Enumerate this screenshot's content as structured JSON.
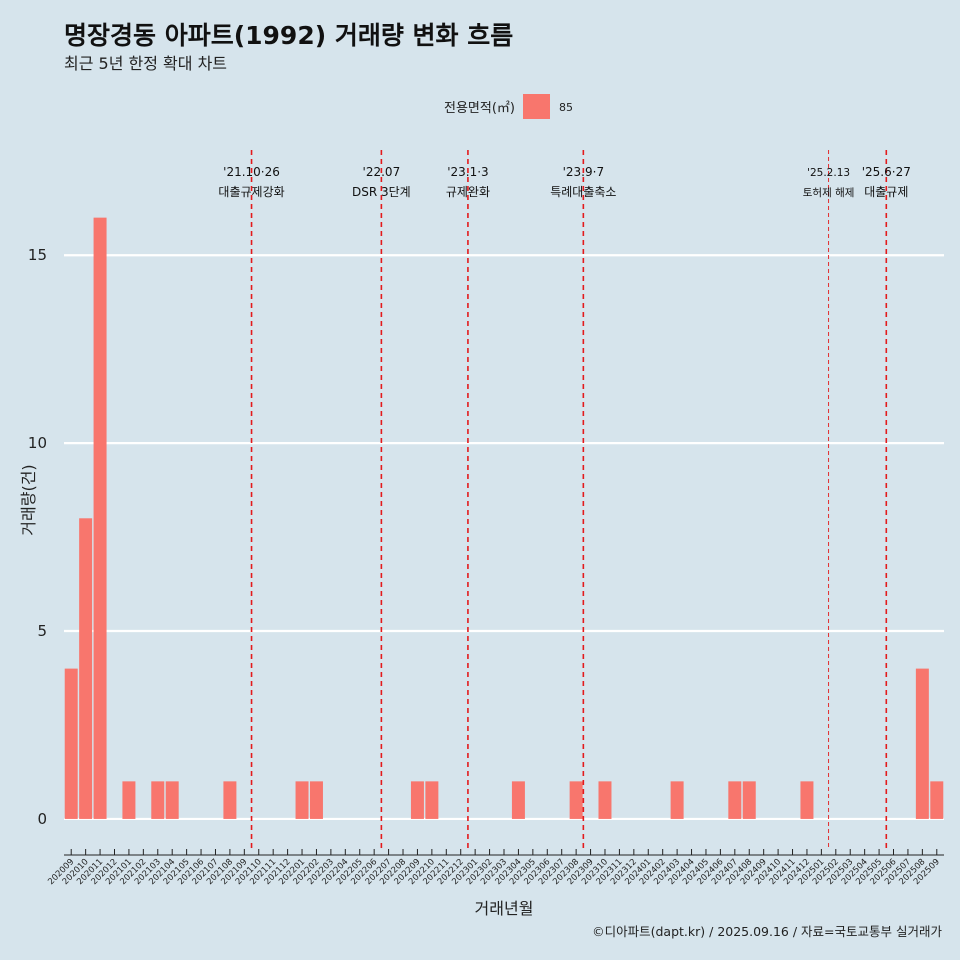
{
  "chart_data": {
    "type": "bar",
    "title": "명장경동 아파트(1992) 거래량 변화 흐름",
    "subtitle": "최근 5년 한정 확대 차트",
    "xlabel": "거래년월",
    "ylabel": "거래량(건)",
    "ylim": [
      -0.8,
      17.8
    ],
    "yticks": [
      0,
      5,
      10,
      15
    ],
    "legend": {
      "title": "전용면적(㎡)",
      "entries": [
        {
          "label": "85",
          "color": "#f8766d"
        }
      ],
      "position": "top"
    },
    "bar_color": "#f8766d",
    "categories": [
      "202009",
      "202010",
      "202011",
      "202012",
      "202101",
      "202102",
      "202103",
      "202104",
      "202105",
      "202106",
      "202107",
      "202108",
      "202109",
      "202110",
      "202111",
      "202112",
      "202201",
      "202202",
      "202203",
      "202204",
      "202205",
      "202206",
      "202207",
      "202208",
      "202209",
      "202210",
      "202211",
      "202212",
      "202301",
      "202302",
      "202303",
      "202304",
      "202305",
      "202306",
      "202307",
      "202308",
      "202309",
      "202310",
      "202311",
      "202312",
      "202401",
      "202402",
      "202403",
      "202404",
      "202405",
      "202406",
      "202407",
      "202408",
      "202409",
      "202410",
      "202411",
      "202412",
      "202501",
      "202502",
      "202503",
      "202504",
      "202505",
      "202506",
      "202507",
      "202508",
      "202509"
    ],
    "values": [
      4,
      8,
      16,
      0,
      1,
      0,
      1,
      1,
      0,
      0,
      0,
      1,
      0,
      0,
      0,
      0,
      1,
      1,
      0,
      0,
      0,
      0,
      0,
      0,
      1,
      1,
      0,
      0,
      0,
      0,
      0,
      1,
      0,
      0,
      0,
      1,
      0,
      1,
      0,
      0,
      0,
      0,
      1,
      0,
      0,
      0,
      1,
      1,
      0,
      0,
      0,
      1,
      0,
      0,
      0,
      0,
      0,
      0,
      0,
      4,
      1
    ],
    "events": [
      {
        "at": 13.0,
        "date": "'21.10·26",
        "label": "대출규제강화",
        "style": "thick"
      },
      {
        "at": 22.0,
        "date": "'22.07",
        "label": "DSR 3단계",
        "style": "thick"
      },
      {
        "at": 28.0,
        "date": "'23.1·3",
        "label": "규제완화",
        "style": "thick"
      },
      {
        "at": 36.0,
        "date": "'23.9·7",
        "label": "특례대출축소",
        "style": "thick"
      },
      {
        "at": 53.0,
        "date": "'25.2.13",
        "label": "토허제 해제",
        "style": "thin"
      },
      {
        "at": 57.0,
        "date": "'25.6·27",
        "label": "대출규제",
        "style": "thick"
      }
    ],
    "caption": "©디아파트(dapt.kr) / 2025.09.16 / 자료=국토교통부 실거래가",
    "colors": {
      "background": "#d6e4ec",
      "grid": "#ffffff",
      "event_line": "#e31a1c"
    }
  }
}
